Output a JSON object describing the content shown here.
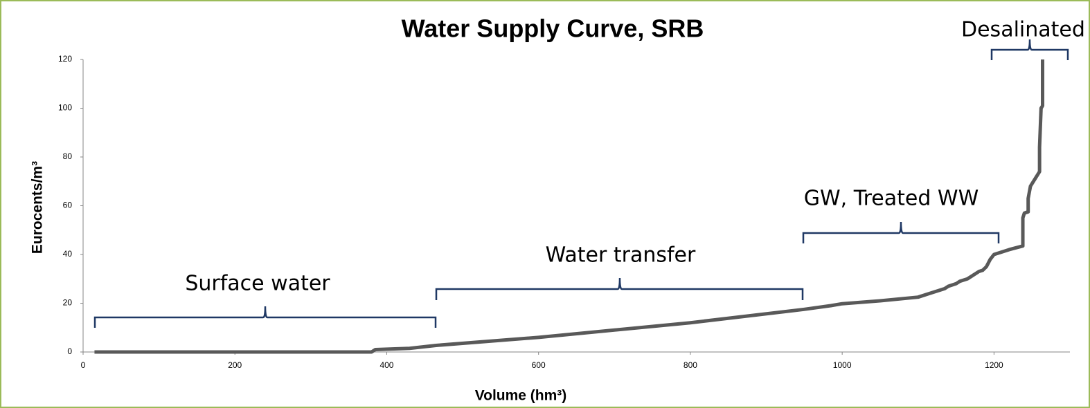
{
  "chart_data": {
    "type": "line",
    "title": "Water Supply Curve, SRB",
    "x_label": "Volume (hm³)",
    "y_label": "Eurocents/m³",
    "x": [
      15,
      380,
      385,
      430,
      465,
      600,
      800,
      950,
      985,
      1000,
      1050,
      1100,
      1115,
      1130,
      1135,
      1140,
      1150,
      1155,
      1165,
      1170,
      1180,
      1185,
      1190,
      1195,
      1200,
      1220,
      1238,
      1238,
      1240,
      1245,
      1245,
      1248,
      1260,
      1260,
      1262,
      1264,
      1264
    ],
    "values": [
      0,
      0,
      1,
      1.5,
      2.7,
      6,
      12,
      17.5,
      19,
      19.8,
      21,
      22.5,
      24,
      25.5,
      26,
      27,
      28,
      29,
      30,
      31,
      33,
      33.5,
      35,
      38,
      40,
      42,
      43.5,
      55,
      57,
      57.5,
      63,
      68,
      74,
      84,
      100,
      101,
      120
    ],
    "color": "#595959",
    "xlim": [
      0,
      1300
    ],
    "xticks": [
      0,
      200,
      400,
      600,
      800,
      1000,
      1200
    ],
    "ylim": [
      0,
      120
    ],
    "yticks": [
      0,
      20,
      40,
      60,
      80,
      100,
      120
    ],
    "grid": false,
    "annotations": [
      "Surface water",
      "Water transfer",
      "GW, Treated WW",
      "Desalinated"
    ]
  }
}
